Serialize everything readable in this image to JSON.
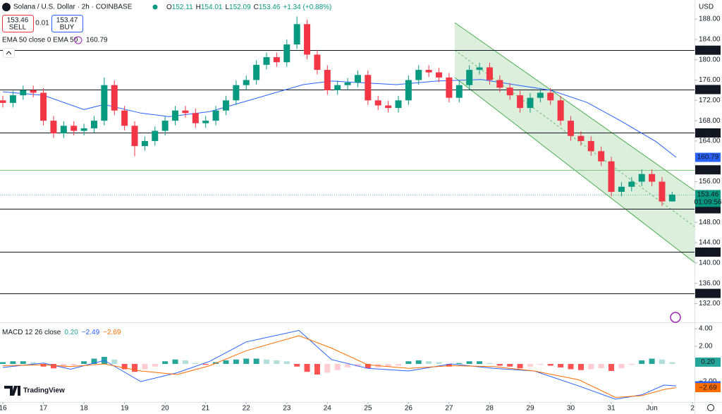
{
  "trade_panel": {
    "sell_price": "153.46",
    "sell": "SELL",
    "spread": "0.01",
    "buy_price": "153.47",
    "buy": "BUY"
  },
  "brand": "TradingView",
  "chart_data": [
    {
      "type": "candlestick",
      "title": "Solana / U.S. Dollar · 2h · COINBASE",
      "ohlc": [
        {
          "label": "O",
          "value": 152.11
        },
        {
          "label": "H",
          "value": 154.01
        },
        {
          "label": "L",
          "value": 152.09
        },
        {
          "label": "C",
          "value": 153.46
        }
      ],
      "change": "+1.34 (+0.88%)",
      "axis_label": "USD",
      "up_color": "#089981",
      "down_color": "#f23645",
      "x": [
        16,
        16.25,
        16.5,
        16.75,
        17,
        17.25,
        17.5,
        17.75,
        18,
        18.25,
        18.5,
        18.75,
        19,
        19.25,
        19.5,
        19.75,
        20,
        20.25,
        20.5,
        20.75,
        21,
        21.25,
        21.5,
        21.75,
        22,
        22.25,
        22.5,
        22.75,
        23,
        23.25,
        23.5,
        23.75,
        24,
        24.25,
        24.5,
        24.75,
        25,
        25.25,
        25.5,
        25.75,
        26,
        26.25,
        26.5,
        26.75,
        27,
        27.25,
        27.5,
        27.75,
        28,
        28.25,
        28.5,
        28.75,
        29,
        29.25,
        29.5,
        29.75,
        30,
        30.25,
        30.5,
        30.75,
        31,
        31.25,
        31.5,
        31.75,
        32,
        32.25,
        32.5
      ],
      "open": [
        172,
        171.5,
        173,
        174,
        173.5,
        168,
        165.5,
        167,
        166,
        166.5,
        168,
        175,
        170,
        167,
        163,
        164,
        166,
        168,
        170,
        169.5,
        167.5,
        168,
        170,
        172,
        175,
        176,
        179,
        180.5,
        179.5,
        183,
        187,
        181,
        178,
        174,
        175,
        175.5,
        177,
        172,
        171,
        170.5,
        172,
        176,
        178,
        177.5,
        176.5,
        172.5,
        175,
        178,
        178.5,
        176,
        174.5,
        173,
        170.5,
        172.5,
        173.5,
        172,
        168,
        165,
        164,
        162,
        160,
        154,
        155,
        156,
        157.5,
        156,
        152.11
      ],
      "high": [
        172.9,
        173.9,
        174.9,
        174.9,
        174.4,
        168.9,
        167.9,
        167.9,
        167.4,
        168.9,
        176.5,
        175.9,
        170.9,
        167.9,
        164.9,
        166.9,
        168.9,
        170.9,
        170.9,
        170.4,
        168.9,
        170.9,
        172.9,
        175.9,
        176.9,
        179.9,
        181.4,
        181.4,
        184,
        188.5,
        187.9,
        181.9,
        178.9,
        175.9,
        176.4,
        177.9,
        177.9,
        172.9,
        171.9,
        172.9,
        176.9,
        178.9,
        178.9,
        178.4,
        177.4,
        175.9,
        178.9,
        179.4,
        179.4,
        176.9,
        175.4,
        173.9,
        173.4,
        174.4,
        174.4,
        172.9,
        168.9,
        165.9,
        164.9,
        162.9,
        160.9,
        155.9,
        156.9,
        158.4,
        158.4,
        156.9,
        154.01
      ],
      "low": [
        170.6,
        170.6,
        172.1,
        172.6,
        167.1,
        164.6,
        164.6,
        165.1,
        165.1,
        165.6,
        167.1,
        169.1,
        166.1,
        161,
        162.1,
        163.1,
        165.1,
        167.1,
        168.6,
        166.6,
        166.6,
        167.1,
        169.1,
        171.1,
        174.1,
        175.1,
        178.1,
        178.6,
        178.6,
        182.1,
        180.1,
        177.1,
        173.1,
        173.1,
        174.1,
        174.6,
        171.1,
        170.1,
        169.6,
        169.6,
        171.1,
        175.1,
        176.6,
        175.6,
        171.6,
        171.6,
        174.1,
        177.1,
        175.1,
        173.6,
        172.1,
        169.6,
        169.6,
        171.6,
        171.1,
        167.1,
        164.1,
        163.1,
        161.1,
        159.1,
        153.1,
        153.1,
        154.1,
        155.1,
        155.1,
        151.2,
        152.09
      ],
      "close": [
        171.5,
        173,
        174,
        173.5,
        168,
        165.5,
        167,
        166,
        166.5,
        168,
        175,
        170,
        167,
        163,
        164,
        166,
        168,
        170,
        169.5,
        167.5,
        168,
        170,
        172,
        175,
        176,
        179,
        180.5,
        179.5,
        183,
        187,
        181,
        178,
        174,
        175,
        175.5,
        177,
        172,
        171,
        170.5,
        172,
        176,
        178,
        177.5,
        176.5,
        172.5,
        175,
        178,
        178.5,
        176,
        174.5,
        173,
        170.5,
        172.5,
        173.5,
        172,
        168,
        165,
        164,
        162,
        160,
        154,
        155,
        156,
        157.5,
        156,
        152.11,
        153.46
      ],
      "ema": {
        "name": "EMA 50 close 0 EMA 50",
        "color": "#2962ff",
        "x": [
          16,
          17,
          18,
          18.5,
          19.4,
          20.1,
          21.1,
          22.2,
          23.4,
          24.1,
          25,
          25.7,
          26.7,
          27.8,
          28.6,
          29.5,
          30.4,
          31.2,
          32.1,
          32.6
        ],
        "values": [
          173.7,
          173,
          170.2,
          171.2,
          169.5,
          168.8,
          169.8,
          172.3,
          175.1,
          175.8,
          175.4,
          175.1,
          175.8,
          176.1,
          175.1,
          174,
          171.6,
          168.1,
          163.9,
          160.79
        ]
      },
      "channel": {
        "color": "#4caf50",
        "upper": {
          "x": [
            27.14,
            33.05
          ],
          "y": [
            187.3,
            154.25
          ]
        },
        "lower": {
          "x": [
            27.14,
            33.05
          ],
          "y": [
            176.5,
            140.1
          ]
        }
      },
      "levels": [
        {
          "value": 181.87,
          "color": "#131722"
        },
        {
          "value": 174.13,
          "color": "#131722"
        },
        {
          "value": 165.59,
          "color": "#131722"
        },
        {
          "value": 158.33,
          "color": "#81c784"
        },
        {
          "value": 150.66,
          "color": "#131722"
        },
        {
          "value": 142.14,
          "color": "#131722"
        },
        {
          "value": 134.01,
          "color": "#131722"
        }
      ],
      "last_price": {
        "value": 153.46,
        "countdown": "01:09:56",
        "color": "#089981"
      },
      "xlim": [
        15.93,
        33.05
      ],
      "ylim": [
        128.6,
        191.75
      ],
      "yticks": [
        {
          "value": 188,
          "label": "188.00"
        },
        {
          "value": 184,
          "label": "184.00"
        },
        {
          "value": 180,
          "label": "180.00"
        },
        {
          "value": 176,
          "label": "176.00"
        },
        {
          "value": 172,
          "label": "172.00"
        },
        {
          "value": 168,
          "label": "168.00"
        },
        {
          "value": 164,
          "label": "164.00"
        },
        {
          "value": 156,
          "label": "156.00"
        },
        {
          "value": 148,
          "label": "148.00"
        },
        {
          "value": 144,
          "label": "144.00"
        },
        {
          "value": 140,
          "label": "140.00"
        },
        {
          "value": 136,
          "label": "136.00"
        },
        {
          "value": 132,
          "label": "132.00"
        }
      ],
      "xticks": [
        16,
        17,
        18,
        19,
        20,
        21,
        22,
        23,
        24,
        25,
        26,
        27,
        28,
        29,
        30,
        31,
        {
          "value": 32,
          "label": "Jun"
        },
        {
          "value": 33,
          "label": "2"
        }
      ]
    },
    {
      "type": "macd",
      "title": "MACD 12 26 close",
      "header_values": [
        {
          "value": 0.2,
          "label": "0.20",
          "color": "#26a69a"
        },
        {
          "value": -2.49,
          "label": "−2.49",
          "color": "#2962ff"
        },
        {
          "value": -2.69,
          "label": "−2.69",
          "color": "#ff6d00"
        }
      ],
      "positive_color": "#26a69a",
      "positive_light": "#b2dfdb",
      "negative_color": "#ff5252",
      "negative_light": "#ffcdd2",
      "x": [
        16,
        16.25,
        16.5,
        16.75,
        17,
        17.25,
        17.5,
        17.75,
        18,
        18.25,
        18.5,
        18.75,
        19,
        19.25,
        19.5,
        19.75,
        20,
        20.25,
        20.5,
        20.75,
        21,
        21.25,
        21.5,
        21.75,
        22,
        22.25,
        22.5,
        22.75,
        23,
        23.25,
        23.5,
        23.75,
        24,
        24.25,
        24.5,
        24.75,
        25,
        25.25,
        25.5,
        25.75,
        26,
        26.25,
        26.5,
        26.75,
        27,
        27.25,
        27.5,
        27.75,
        28,
        28.25,
        28.5,
        28.75,
        29,
        29.25,
        29.5,
        29.75,
        30,
        30.25,
        30.5,
        30.75,
        31,
        31.25,
        31.5,
        31.75,
        32,
        32.25,
        32.5
      ],
      "histogram": [
        0.2,
        0.3,
        0.3,
        0.2,
        -0.3,
        -0.5,
        -0.4,
        -0.2,
        0.3,
        0.6,
        0.8,
        0.5,
        -0.6,
        -0.9,
        -0.6,
        -0.3,
        0.3,
        0.5,
        0.4,
        0.1,
        -0.1,
        0.2,
        0.4,
        0.5,
        0.6,
        0.6,
        0.5,
        0.4,
        0.3,
        -0.3,
        -0.9,
        -1.2,
        -1,
        -0.7,
        -0.4,
        -0.3,
        -0.5,
        -0.4,
        -0.3,
        -0.2,
        0.3,
        0.4,
        0.3,
        0.2,
        -0.3,
        0.1,
        0.3,
        0.3,
        0.1,
        -0.2,
        -0.3,
        -0.5,
        -0.3,
        -0.1,
        -0.2,
        -0.4,
        -0.6,
        -0.7,
        -0.6,
        -0.5,
        -0.8,
        -0.5,
        -0.1,
        0.4,
        0.6,
        0.5,
        0.2
      ],
      "series": [
        {
          "name": "MACD",
          "color": "#2962ff",
          "x": [
            16,
            17,
            17.67,
            18.5,
            19.4,
            20.3,
            21.1,
            22,
            23.3,
            24.1,
            25,
            26,
            27.05,
            28.1,
            29.1,
            30.2,
            31.1,
            31.75,
            32.3,
            32.6
          ],
          "values": [
            -0.4,
            0.1,
            -0.6,
            0.4,
            -2,
            -1,
            0.3,
            2.5,
            3.8,
            0.5,
            -0.5,
            -0.8,
            0,
            -0.5,
            -0.8,
            -2.5,
            -4,
            -3.5,
            -2.4,
            -2.49
          ]
        },
        {
          "name": "Signal",
          "color": "#ff6d00",
          "x": [
            16,
            17,
            17.67,
            18.5,
            19.4,
            20.3,
            21.1,
            22,
            23.3,
            24.1,
            25,
            26,
            27.05,
            28.1,
            29.1,
            30.2,
            31.1,
            31.75,
            32.3,
            32.6
          ],
          "values": [
            -0.2,
            -0.1,
            -0.3,
            0,
            -0.8,
            -1.2,
            -0.2,
            1.5,
            3.2,
            1.8,
            -0.1,
            -0.5,
            -0.2,
            -0.3,
            -0.8,
            -1.8,
            -3.8,
            -3.6,
            -2.9,
            -2.69
          ]
        }
      ],
      "ylim": [
        -4.32,
        4.48
      ],
      "yticks": [
        {
          "value": 4,
          "label": "4.00"
        },
        {
          "value": 2,
          "label": "2.00"
        },
        {
          "value": -2,
          "label": "−2.00"
        }
      ]
    }
  ]
}
